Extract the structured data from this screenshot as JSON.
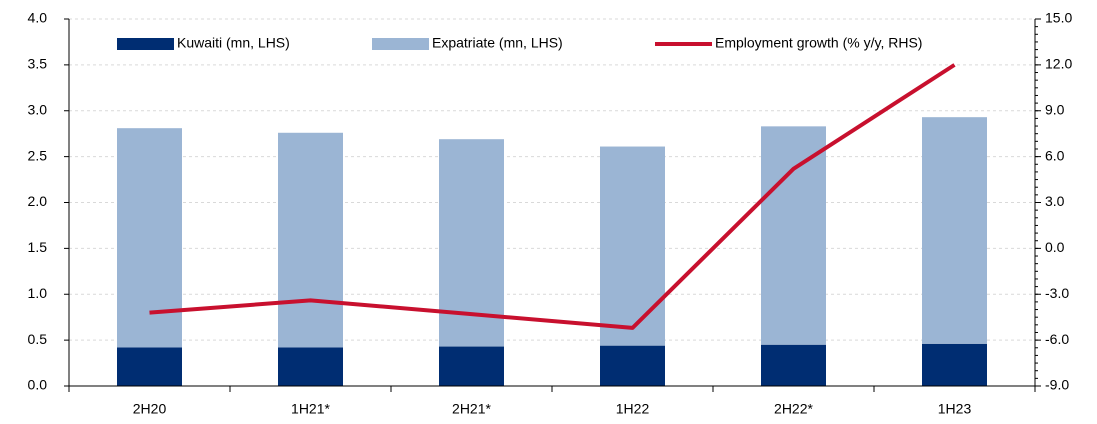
{
  "chart_data": {
    "type": "bar",
    "categories": [
      "2H20",
      "1H21*",
      "2H21*",
      "1H22",
      "2H22*",
      "1H23"
    ],
    "series": [
      {
        "name": "Kuwaiti (mn, LHS)",
        "color": "#002d72",
        "type": "bar",
        "values": [
          0.42,
          0.42,
          0.43,
          0.44,
          0.45,
          0.46
        ]
      },
      {
        "name": "Expatriate (mn, LHS)",
        "color": "#9bb5d4",
        "type": "bar",
        "values": [
          2.39,
          2.34,
          2.26,
          2.17,
          2.38,
          2.47
        ]
      },
      {
        "name": "Employment growth (% y/y, RHS)",
        "color": "#c8102e",
        "type": "line",
        "axis": "y2",
        "values": [
          -4.2,
          -3.4,
          -4.3,
          -5.2,
          5.2,
          12.0
        ]
      }
    ],
    "stacked": true,
    "ylim": [
      0,
      4
    ],
    "yticks": [
      {
        "value": 0,
        "label": "0.0"
      },
      0.5,
      {
        "value": 1,
        "label": "1.0"
      },
      1.5,
      {
        "value": 2,
        "label": "2.0"
      },
      2.5,
      {
        "value": 3,
        "label": "3.0"
      },
      3.5,
      {
        "value": 4,
        "label": "4.0"
      }
    ],
    "y2lim": [
      -9,
      15
    ],
    "y2ticks": [
      {
        "value": -9,
        "label": "-9.0"
      },
      {
        "value": -6,
        "label": "-6.0"
      },
      {
        "value": -3,
        "label": "-3.0"
      },
      {
        "value": 0,
        "label": "0.0"
      },
      {
        "value": 3,
        "label": "3.0"
      },
      {
        "value": 6,
        "label": "6.0"
      },
      {
        "value": 9,
        "label": "9.0"
      },
      {
        "value": 12,
        "label": "12.0"
      },
      {
        "value": 15,
        "label": "15.0"
      }
    ],
    "grid": true,
    "legend": "top"
  }
}
